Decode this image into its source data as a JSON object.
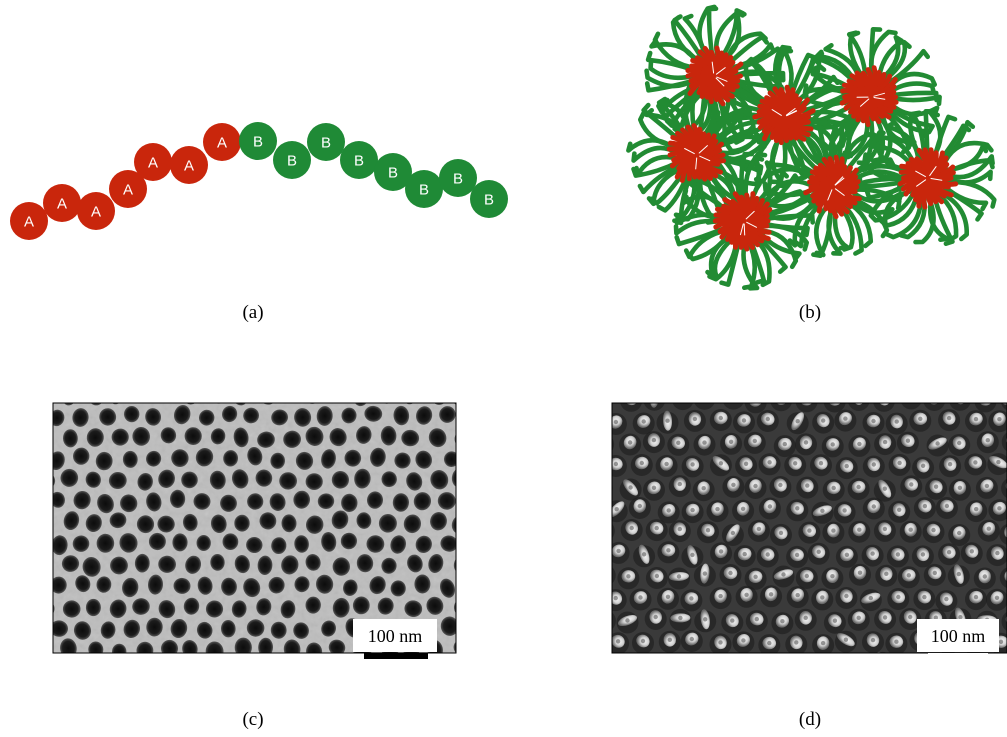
{
  "panels": {
    "a": {
      "caption": "(a)",
      "monomer_a_label": "A",
      "monomer_b_label": "B",
      "monomer_a_count": 7,
      "monomer_b_count": 8
    },
    "b": {
      "caption": "(b)",
      "micelle_count": 7
    },
    "c": {
      "caption": "(c)",
      "scale_bar_label": "100 nm"
    },
    "d": {
      "caption": "(d)",
      "scale_bar_label": "100 nm"
    }
  },
  "colors": {
    "block_a": "#c9260c",
    "block_b": "#1f8a36",
    "corona_b": "#228b33",
    "sem_light": "#bdbdbd",
    "sem_hole": "#151515",
    "sem_dark": "#3a3a3a",
    "sem_dot": "#e6e6e6",
    "scale_bar_c": "#000000",
    "scale_bar_d": "#ffffff"
  }
}
